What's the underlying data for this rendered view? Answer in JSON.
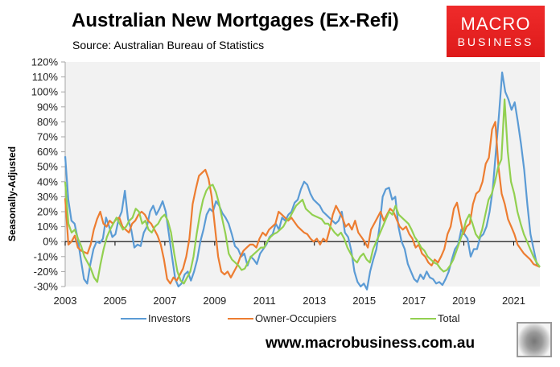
{
  "header": {
    "title": "Australian New Mortgages (Ex-Refi)",
    "subtitle": "Source: Australian Bureau of Statistics"
  },
  "logo": {
    "line1": "MACRO",
    "line2": "BUSINESS",
    "color": "#e32222"
  },
  "footer": {
    "url": "www.macrobusiness.com.au",
    "mascot": "wolf-logo"
  },
  "colors": {
    "investors": "#5b9bd5",
    "owner_occupiers": "#ed7d31",
    "total": "#92d050",
    "plot_bg": "#f2f2f2"
  },
  "chart_data": {
    "type": "line",
    "title": "Australian New Mortgages (Ex-Refi)",
    "subtitle": "Source: Australian Bureau of Statistics",
    "xlabel": "",
    "ylabel": "Seasonally-Adjusted",
    "ylim": [
      -30,
      120
    ],
    "yticks": [
      "-30%",
      "-20%",
      "-10%",
      "0%",
      "10%",
      "20%",
      "30%",
      "40%",
      "50%",
      "60%",
      "70%",
      "80%",
      "90%",
      "100%",
      "110%",
      "120%"
    ],
    "xticks": [
      "2003",
      "2005",
      "2007",
      "2009",
      "2011",
      "2013",
      "2015",
      "2017",
      "2019",
      "2021"
    ],
    "x_start": 2003.0,
    "x_end": 2022.05,
    "x_step_note": "values sampled every 2 months from Jan 2003",
    "legend_position": "bottom",
    "grid": false,
    "series": [
      {
        "name": "Investors",
        "color": "#5b9bd5",
        "values": [
          57,
          28,
          14,
          12,
          2,
          -12,
          -25,
          -28,
          -15,
          -5,
          0,
          -1,
          2,
          16,
          10,
          3,
          5,
          15,
          20,
          34,
          15,
          8,
          -4,
          -2,
          -3,
          6,
          10,
          20,
          24,
          18,
          22,
          27,
          20,
          5,
          -10,
          -25,
          -30,
          -28,
          -22,
          -20,
          -26,
          -20,
          -12,
          0,
          8,
          18,
          22,
          20,
          27,
          24,
          19,
          16,
          12,
          5,
          -3,
          -5,
          -10,
          -8,
          -16,
          -10,
          -12,
          -15,
          -8,
          -5,
          -2,
          3,
          5,
          12,
          8,
          16,
          14,
          18,
          20,
          26,
          28,
          35,
          40,
          38,
          32,
          28,
          26,
          24,
          20,
          18,
          16,
          14,
          12,
          14,
          20,
          6,
          3,
          -6,
          -20,
          -27,
          -30,
          -28,
          -32,
          -20,
          -12,
          -5,
          10,
          30,
          35,
          36,
          28,
          30,
          10,
          0,
          -5,
          -15,
          -20,
          -25,
          -27,
          -22,
          -25,
          -20,
          -24,
          -25,
          -28,
          -27,
          -29,
          -25,
          -20,
          -12,
          -5,
          -2,
          8,
          5,
          2,
          -10,
          -5,
          -5,
          3,
          5,
          10,
          20,
          35,
          60,
          85,
          113,
          100,
          95,
          88,
          93,
          80,
          65,
          48,
          25,
          5,
          -5,
          -15,
          -17
        ]
      },
      {
        "name": "Owner-Occupiers",
        "color": "#ed7d31",
        "values": [
          29,
          -2,
          0,
          4,
          -4,
          -6,
          -7,
          -8,
          -2,
          8,
          15,
          20,
          12,
          10,
          14,
          12,
          15,
          16,
          10,
          8,
          6,
          12,
          14,
          18,
          20,
          18,
          14,
          12,
          8,
          4,
          -2,
          -12,
          -25,
          -28,
          -24,
          -26,
          -22,
          -18,
          -10,
          2,
          25,
          35,
          44,
          46,
          48,
          42,
          30,
          10,
          -10,
          -20,
          -22,
          -20,
          -24,
          -20,
          -16,
          -10,
          -6,
          -4,
          -2,
          -2,
          -4,
          2,
          6,
          4,
          8,
          10,
          12,
          20,
          18,
          16,
          14,
          16,
          13,
          10,
          8,
          6,
          5,
          2,
          0,
          2,
          -2,
          2,
          0,
          8,
          18,
          24,
          20,
          16,
          10,
          12,
          8,
          14,
          6,
          3,
          0,
          -4,
          8,
          12,
          16,
          20,
          14,
          18,
          22,
          20,
          15,
          10,
          8,
          10,
          5,
          2,
          -4,
          -2,
          -8,
          -10,
          -14,
          -16,
          -12,
          -14,
          -10,
          -5,
          5,
          10,
          22,
          26,
          15,
          5,
          10,
          12,
          25,
          32,
          34,
          40,
          52,
          56,
          75,
          80,
          50,
          32,
          25,
          15,
          10,
          5,
          -2,
          -5,
          -8,
          -10,
          -12,
          -15,
          -16,
          -17
        ]
      },
      {
        "name": "Total",
        "color": "#92d050",
        "values": [
          40,
          12,
          6,
          8,
          2,
          -3,
          -10,
          -14,
          -18,
          -24,
          -27,
          -15,
          -5,
          3,
          8,
          12,
          16,
          12,
          8,
          10,
          14,
          16,
          22,
          20,
          12,
          14,
          8,
          6,
          10,
          12,
          16,
          18,
          14,
          6,
          -8,
          -20,
          -26,
          -28,
          -24,
          -20,
          -10,
          5,
          18,
          28,
          34,
          37,
          38,
          33,
          25,
          15,
          5,
          -8,
          -12,
          -14,
          -16,
          -19,
          -18,
          -14,
          -10,
          -8,
          -6,
          -4,
          -4,
          0,
          3,
          5,
          6,
          8,
          10,
          14,
          16,
          20,
          24,
          26,
          28,
          22,
          20,
          18,
          17,
          16,
          15,
          12,
          12,
          9,
          6,
          4,
          6,
          2,
          -4,
          -8,
          -12,
          -14,
          -10,
          -8,
          -12,
          -14,
          -5,
          0,
          5,
          10,
          15,
          20,
          18,
          24,
          18,
          16,
          14,
          12,
          8,
          3,
          0,
          -4,
          -6,
          -10,
          -12,
          -14,
          -15,
          -18,
          -20,
          -19,
          -16,
          -12,
          -6,
          0,
          6,
          14,
          18,
          12,
          5,
          2,
          8,
          18,
          28,
          32,
          40,
          50,
          55,
          95,
          60,
          40,
          32,
          20,
          12,
          5,
          0,
          -5,
          -10,
          -14,
          -17
        ]
      }
    ]
  },
  "legend": {
    "items": [
      {
        "label": "Investors",
        "color": "#5b9bd5"
      },
      {
        "label": "Owner-Occupiers",
        "color": "#ed7d31"
      },
      {
        "label": "Total",
        "color": "#92d050"
      }
    ]
  }
}
